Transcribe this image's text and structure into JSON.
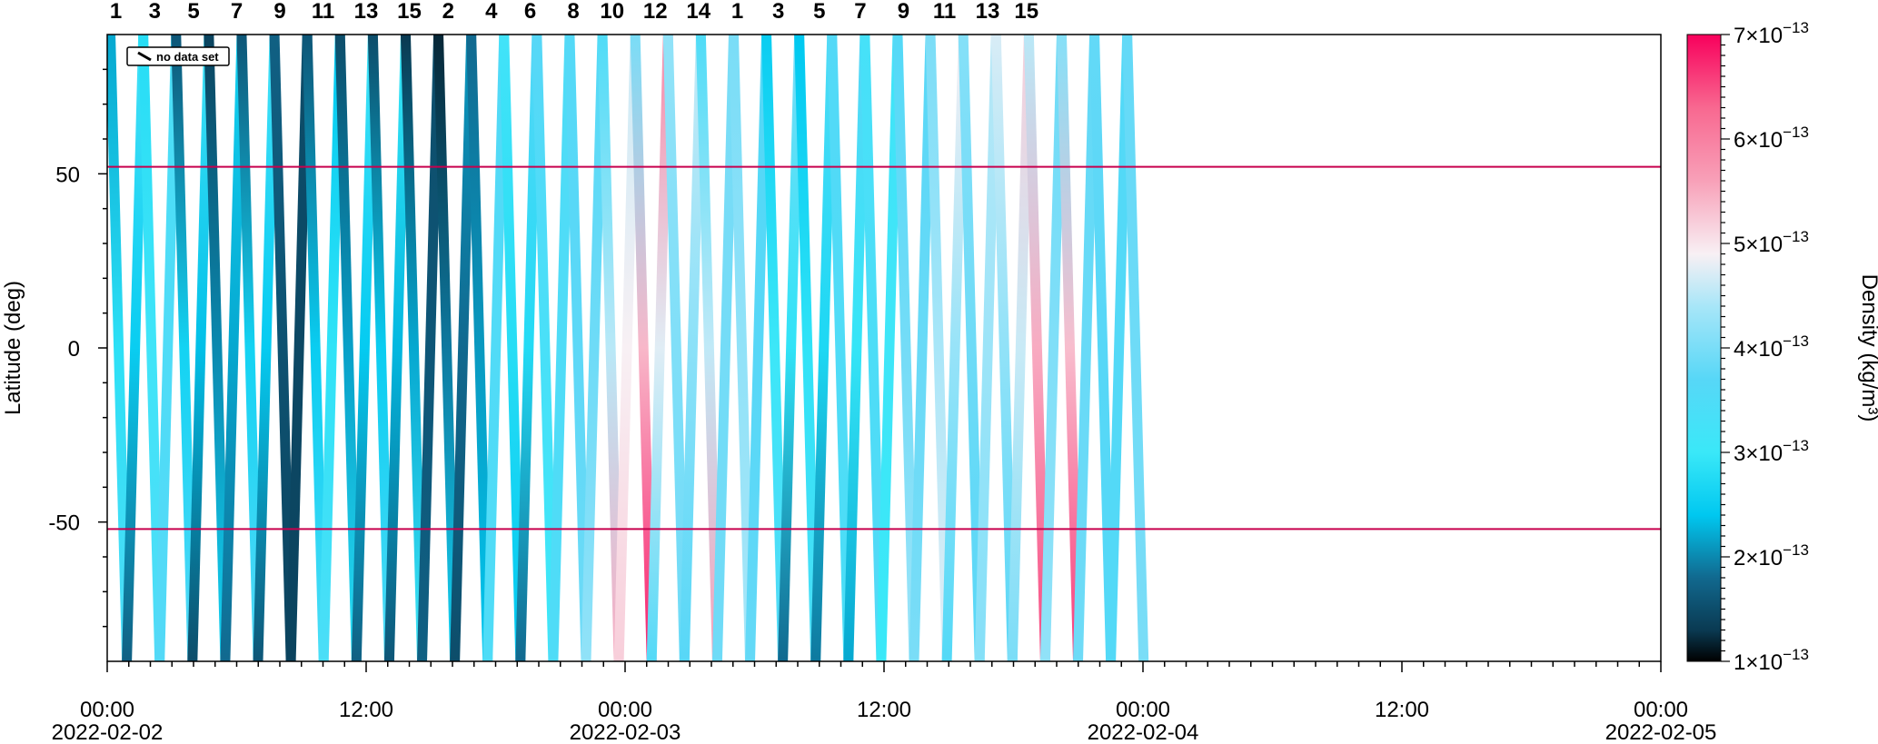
{
  "chart_data": {
    "type": "heatmap",
    "title": "",
    "xlabel": "",
    "ylabel": "Latitude (deg)",
    "x_range": [
      "2022-02-02 00:00",
      "2022-02-05 00:00"
    ],
    "ylim": [
      -90,
      90
    ],
    "x_ticks": [
      {
        "time": "00:00",
        "date": "2022-02-02"
      },
      {
        "time": "12:00",
        "date": ""
      },
      {
        "time": "00:00",
        "date": "2022-02-03"
      },
      {
        "time": "12:00",
        "date": ""
      },
      {
        "time": "00:00",
        "date": "2022-02-04"
      },
      {
        "time": "12:00",
        "date": ""
      },
      {
        "time": "00:00",
        "date": "2022-02-05"
      }
    ],
    "y_ticks": [
      50,
      0,
      -50
    ],
    "y_tick_labels": [
      "50",
      "0",
      "-50"
    ],
    "reference_lines_lat": [
      52,
      -52
    ],
    "reference_line_color": "#c8004e",
    "legend": {
      "label": "no data set",
      "placement": "top-left"
    },
    "orbit_labels": [
      {
        "label": "1",
        "time_h": 0.4
      },
      {
        "label": "3",
        "time_h": 2.2
      },
      {
        "label": "5",
        "time_h": 4.0
      },
      {
        "label": "7",
        "time_h": 6.0
      },
      {
        "label": "9",
        "time_h": 8.0
      },
      {
        "label": "11",
        "time_h": 10.0
      },
      {
        "label": "13",
        "time_h": 12.0
      },
      {
        "label": "15",
        "time_h": 14.0
      },
      {
        "label": "2",
        "time_h": 15.8
      },
      {
        "label": "4",
        "time_h": 17.8
      },
      {
        "label": "6",
        "time_h": 19.6
      },
      {
        "label": "8",
        "time_h": 21.6
      },
      {
        "label": "10",
        "time_h": 23.4
      },
      {
        "label": "12",
        "time_h": 25.4
      },
      {
        "label": "14",
        "time_h": 27.4
      },
      {
        "label": "1",
        "time_h": 29.2
      },
      {
        "label": "3",
        "time_h": 31.1
      },
      {
        "label": "5",
        "time_h": 33.0
      },
      {
        "label": "7",
        "time_h": 34.9
      },
      {
        "label": "9",
        "time_h": 36.9
      },
      {
        "label": "11",
        "time_h": 38.8
      },
      {
        "label": "13",
        "time_h": 40.8
      },
      {
        "label": "15",
        "time_h": 42.6
      }
    ],
    "colorbar": {
      "label": "Density (kg/m³)",
      "min": 1e-13,
      "max": 7e-13,
      "ticks": [
        {
          "value": 1e-13,
          "mantissa": "1",
          "exp": "−13"
        },
        {
          "value": 2e-13,
          "mantissa": "2",
          "exp": "−13"
        },
        {
          "value": 3e-13,
          "mantissa": "3",
          "exp": "−13"
        },
        {
          "value": 4e-13,
          "mantissa": "4",
          "exp": "−13"
        },
        {
          "value": 5e-13,
          "mantissa": "5",
          "exp": "−13"
        },
        {
          "value": 6e-13,
          "mantissa": "6",
          "exp": "−13"
        },
        {
          "value": 7e-13,
          "mantissa": "7",
          "exp": "−13"
        }
      ],
      "stops": [
        {
          "value": 1e-13,
          "color": "#000000"
        },
        {
          "value": 1.3e-13,
          "color": "#0a3a52"
        },
        {
          "value": 1.8e-13,
          "color": "#11698f"
        },
        {
          "value": 2.4e-13,
          "color": "#00c8f0"
        },
        {
          "value": 3e-13,
          "color": "#3ae8f8"
        },
        {
          "value": 3.7e-13,
          "color": "#57d7f7"
        },
        {
          "value": 4.4e-13,
          "color": "#a8e6f8"
        },
        {
          "value": 4.9e-13,
          "color": "#f8f0f4"
        },
        {
          "value": 5.6e-13,
          "color": "#f8a0b8"
        },
        {
          "value": 6.3e-13,
          "color": "#f86890"
        },
        {
          "value": 7e-13,
          "color": "#f8005c"
        }
      ]
    },
    "passes": {
      "period_h": 1.52,
      "start_h": 0.15,
      "segments": [
        [
          2.2e-13,
          3.5e-13
        ],
        [
          1.7e-13,
          3.3e-13
        ],
        [
          2.8e-13,
          3.5e-13
        ],
        [
          3.6e-13,
          3.4e-13
        ],
        [
          1.6e-13,
          3.6e-13
        ],
        [
          1.5e-13,
          3.2e-13
        ],
        [
          1.4e-13,
          2.6e-13
        ],
        [
          1.8e-13,
          2.6e-13
        ],
        [
          1.6e-13,
          3.6e-13
        ],
        [
          1.6e-13,
          3.3e-13
        ],
        [
          1.7e-13,
          1.4e-13
        ],
        [
          1.4e-13,
          1.5e-13
        ],
        [
          1.6e-13,
          3.4e-13
        ],
        [
          3.4e-13,
          2.4e-13
        ],
        [
          1.5e-13,
          2.8e-13
        ],
        [
          1.7e-13,
          3.2e-13
        ],
        [
          1.5e-13,
          3.5e-13
        ],
        [
          1.6e-13,
          3e-13
        ],
        [
          1.3e-13,
          3.1e-13
        ],
        [
          1.7e-13,
          1.5e-13
        ],
        [
          1.2e-13,
          2.6e-13
        ],
        [
          1.5e-13,
          2.1e-13
        ],
        [
          1.8e-13,
          2.4e-13
        ],
        [
          3.5e-13,
          3.6e-13
        ],
        [
          3.2e-13,
          2.4e-13
        ],
        [
          1.8e-13,
          3.7e-13
        ],
        [
          3.7e-13,
          3e-13
        ],
        [
          3.5e-13,
          3.5e-13
        ],
        [
          3.6e-13,
          3.9e-13
        ],
        [
          4.2e-13,
          3.6e-13
        ],
        [
          3.5e-13,
          5.5e-13
        ],
        [
          5.2e-13,
          4.6e-13
        ],
        [
          4e-13,
          6.8e-13
        ],
        [
          3.6e-13,
          5.9e-13
        ],
        [
          4.2e-13,
          3.9e-13
        ],
        [
          3.7e-13,
          4.6e-13
        ],
        [
          3.5e-13,
          5.6e-13
        ],
        [
          3.9e-13,
          4e-13
        ],
        [
          4e-13,
          4.4e-13
        ],
        [
          3.8e-13,
          3.6e-13
        ],
        [
          2.5e-13,
          3.6e-13
        ],
        [
          1.8e-13,
          4e-13
        ],
        [
          2.4e-13,
          3.4e-13
        ],
        [
          1.9e-13,
          3.5e-13
        ],
        [
          3.6e-13,
          3.4e-13
        ],
        [
          2.2e-13,
          3.7e-13
        ],
        [
          3.3e-13,
          3.6e-13
        ],
        [
          3e-13,
          3.2e-13
        ],
        [
          3.6e-13,
          4.3e-13
        ],
        [
          4e-13,
          3.7e-13
        ],
        [
          4e-13,
          4.8e-13
        ],
        [
          3.6e-13,
          4.9e-13
        ],
        [
          4.1e-13,
          3.7e-13
        ],
        [
          4.1e-13,
          4.5e-13
        ],
        [
          4.7e-13,
          3.7e-13
        ],
        [
          4e-13,
          5.2e-13
        ],
        [
          4.5e-13,
          6.5e-13
        ],
        [
          4.2e-13,
          3.9e-13
        ],
        [
          4.1e-13,
          6.6e-13
        ],
        [
          3.9e-13,
          3.8e-13
        ],
        [
          3.8e-13,
          3.6e-13
        ],
        [
          3.6e-13,
          3.6e-13
        ],
        [
          3.8e-13,
          4e-13
        ]
      ]
    }
  }
}
